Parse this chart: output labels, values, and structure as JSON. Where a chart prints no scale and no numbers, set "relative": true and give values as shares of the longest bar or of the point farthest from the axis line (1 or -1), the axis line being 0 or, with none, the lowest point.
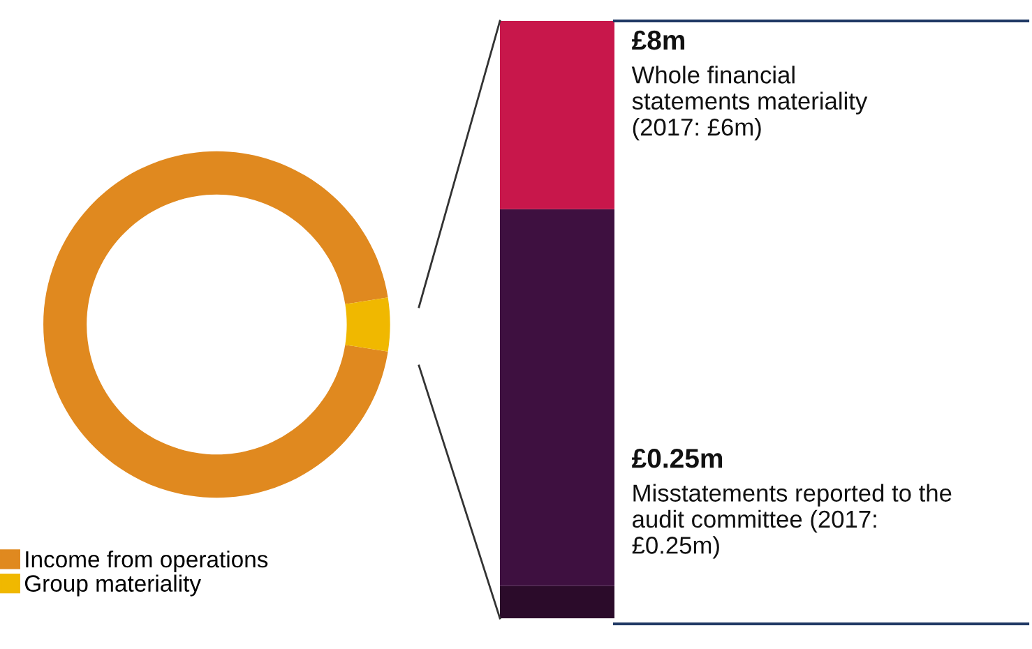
{
  "chart_data": [
    {
      "type": "donut",
      "categories": [
        "Income from operations",
        "Group materiality"
      ],
      "values": [
        95,
        5
      ],
      "colors": [
        "#e0891f",
        "#f0b800"
      ],
      "legend": "bottom left"
    },
    {
      "type": "bar",
      "stacked": true,
      "relative": true,
      "categories": [
        null
      ],
      "series": [
        {
          "color": "#2b0b2a",
          "values": [
            0.054
          ]
        },
        {
          "color": "#3e1040",
          "values": [
            0.631
          ]
        },
        {
          "color": "#c8174b",
          "values": [
            0.315
          ]
        }
      ],
      "annotations": [
        "£8m",
        "Whole financial\nstatements materiality\n(2017: £6m)",
        "£0.25m",
        "Misstatements reported to the\naudit committee (2017:\n£0.25m)"
      ]
    }
  ]
}
